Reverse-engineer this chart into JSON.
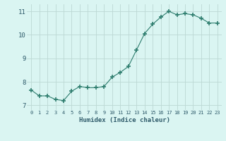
{
  "x": [
    0,
    1,
    2,
    3,
    4,
    5,
    6,
    7,
    8,
    9,
    10,
    11,
    12,
    13,
    14,
    15,
    16,
    17,
    18,
    19,
    20,
    21,
    22,
    23
  ],
  "y": [
    7.65,
    7.4,
    7.4,
    7.25,
    7.2,
    7.6,
    7.8,
    7.75,
    7.75,
    7.8,
    8.2,
    8.4,
    8.65,
    9.35,
    10.05,
    10.45,
    10.75,
    11.0,
    10.85,
    10.9,
    10.85,
    10.7,
    10.5,
    10.5
  ],
  "xlabel": "Humidex (Indice chaleur)",
  "ylim": [
    6.8,
    11.3
  ],
  "xlim": [
    -0.5,
    23.5
  ],
  "yticks": [
    7,
    8,
    9,
    10,
    11
  ],
  "xticks": [
    0,
    1,
    2,
    3,
    4,
    5,
    6,
    7,
    8,
    9,
    10,
    11,
    12,
    13,
    14,
    15,
    16,
    17,
    18,
    19,
    20,
    21,
    22,
    23
  ],
  "line_color": "#2e7d6e",
  "marker_color": "#2e7d6e",
  "bg_color": "#daf5f2",
  "grid_color": "#bcd8d4",
  "tick_label_color": "#2e5a6a",
  "xlabel_color": "#2e5a6a"
}
